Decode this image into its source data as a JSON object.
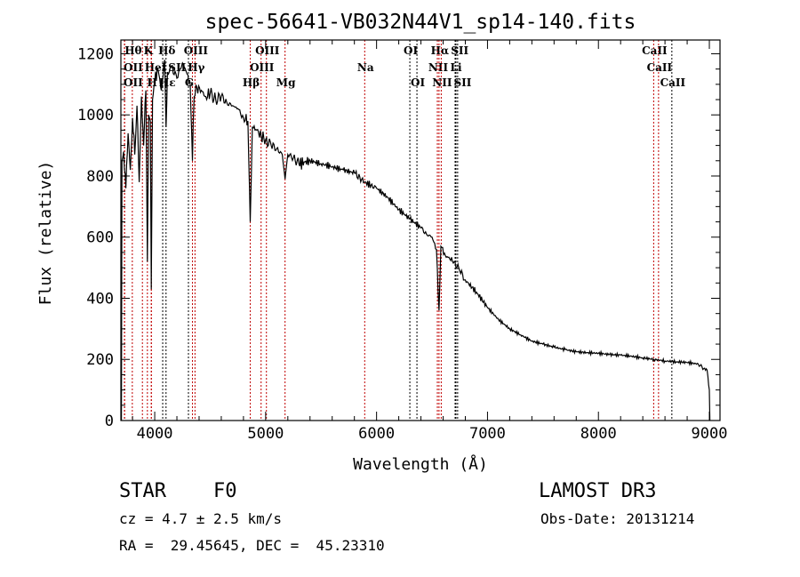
{
  "chart_data": {
    "type": "line",
    "title": "spec-56641-VB032N44V1_sp14-140.fits",
    "xlabel": "Wavelength (Å)",
    "ylabel": "Flux (relative)",
    "xlim": [
      3695,
      9096
    ],
    "ylim": [
      0,
      1245
    ],
    "xticks": [
      4000,
      5000,
      6000,
      7000,
      8000,
      9000
    ],
    "yticks": [
      0,
      200,
      400,
      600,
      800,
      1000,
      1200
    ],
    "grid": false,
    "series": [
      {
        "name": "spectrum",
        "x": [
          3700,
          3705,
          3720,
          3740,
          3760,
          3780,
          3800,
          3820,
          3840,
          3860,
          3880,
          3900,
          3920,
          3934,
          3945,
          3960,
          3969,
          3980,
          4000,
          4030,
          4060,
          4090,
          4102,
          4115,
          4150,
          4200,
          4250,
          4300,
          4320,
          4340,
          4355,
          4380,
          4420,
          4460,
          4500,
          4550,
          4600,
          4650,
          4700,
          4750,
          4800,
          4840,
          4861,
          4880,
          4920,
          4960,
          5000,
          5050,
          5100,
          5150,
          5175,
          5200,
          5250,
          5300,
          5400,
          5500,
          5600,
          5700,
          5800,
          5890,
          5950,
          6000,
          6100,
          6200,
          6300,
          6400,
          6450,
          6500,
          6540,
          6563,
          6580,
          6620,
          6700,
          6750,
          6800,
          6900,
          7000,
          7100,
          7200,
          7300,
          7400,
          7500,
          7600,
          7700,
          7800,
          7900,
          8000,
          8100,
          8200,
          8300,
          8400,
          8500,
          8600,
          8700,
          8800,
          8900,
          8950,
          8980,
          9000,
          9005
        ],
        "y": [
          0,
          850,
          880,
          760,
          940,
          820,
          990,
          870,
          1030,
          780,
          1060,
          900,
          1080,
          520,
          1000,
          980,
          430,
          1050,
          1110,
          1150,
          1080,
          1180,
          960,
          1140,
          1160,
          1120,
          1170,
          1130,
          1100,
          850,
          1060,
          1090,
          1080,
          1060,
          1070,
          1050,
          1060,
          1040,
          1030,
          1020,
          990,
          980,
          650,
          960,
          950,
          930,
          920,
          900,
          890,
          870,
          790,
          870,
          860,
          840,
          850,
          840,
          830,
          820,
          810,
          780,
          770,
          760,
          730,
          690,
          660,
          630,
          610,
          600,
          560,
          360,
          570,
          540,
          520,
          490,
          460,
          420,
          370,
          330,
          300,
          280,
          260,
          250,
          240,
          232,
          225,
          222,
          220,
          216,
          214,
          210,
          205,
          200,
          195,
          192,
          190,
          185,
          170,
          165,
          100,
          0
        ]
      }
    ],
    "line_markers": [
      {
        "label": "Hθ",
        "wl": 3798,
        "row": 0,
        "color": "#c00000"
      },
      {
        "label": "K",
        "wl": 3934,
        "row": 0,
        "color": "#c00000"
      },
      {
        "label": "Hδ",
        "wl": 4102,
        "row": 0,
        "color": "#000000"
      },
      {
        "label": "OIII",
        "wl": 4363,
        "row": 0,
        "color": "#c00000"
      },
      {
        "label": "OIII",
        "wl": 5007,
        "row": 0,
        "color": "#c00000"
      },
      {
        "label": "OI",
        "wl": 6300,
        "row": 0,
        "color": "#000000"
      },
      {
        "label": "Hα",
        "wl": 6563,
        "row": 0,
        "color": "#c00000"
      },
      {
        "label": "SII",
        "wl": 6716,
        "row": 0,
        "color": "#000000"
      },
      {
        "label": "CaII",
        "wl": 8498,
        "row": 0,
        "color": "#c00000"
      },
      {
        "label": "OII",
        "wl": 3727,
        "row": 1,
        "color": "#c00000"
      },
      {
        "label": "HeI",
        "wl": 3889,
        "row": 1,
        "color": "#c00000"
      },
      {
        "label": "SII",
        "wl": 4072,
        "row": 1,
        "color": "#000000"
      },
      {
        "label": "Hγ",
        "wl": 4340,
        "row": 1,
        "color": "#c00000"
      },
      {
        "label": "OIII",
        "wl": 4959,
        "row": 1,
        "color": "#c00000"
      },
      {
        "label": "Na",
        "wl": 5893,
        "row": 1,
        "color": "#c00000"
      },
      {
        "label": "NII",
        "wl": 6548,
        "row": 1,
        "color": "#c00000"
      },
      {
        "label": "Li",
        "wl": 6708,
        "row": 1,
        "color": "#000000"
      },
      {
        "label": "CaII",
        "wl": 8542,
        "row": 1,
        "color": "#c00000"
      },
      {
        "label": "OII",
        "wl": 3729,
        "row": 2,
        "color": "#c00000"
      },
      {
        "label": "Hε",
        "wl": 3970,
        "row": 2,
        "color": "#c00000"
      },
      {
        "label": "H",
        "wl": 3969,
        "row": 2,
        "color": "#c00000"
      },
      {
        "label": "G",
        "wl": 4304,
        "row": 2,
        "color": "#000000"
      },
      {
        "label": "Hβ",
        "wl": 4861,
        "row": 2,
        "color": "#c00000"
      },
      {
        "label": "Mg",
        "wl": 5175,
        "row": 2,
        "color": "#c00000"
      },
      {
        "label": "OI",
        "wl": 6364,
        "row": 2,
        "color": "#000000"
      },
      {
        "label": "NII",
        "wl": 6583,
        "row": 2,
        "color": "#c00000"
      },
      {
        "label": "SII",
        "wl": 6731,
        "row": 2,
        "color": "#000000"
      },
      {
        "label": "CaII",
        "wl": 8662,
        "row": 2,
        "color": "#000000"
      }
    ]
  },
  "info": {
    "object_class": "STAR",
    "subclass": "F0",
    "survey": "LAMOST DR3",
    "cz": "cz = 4.7 ± 2.5 km/s",
    "obs_date": "Obs-Date: 20131214",
    "coords": "RA =  29.45645, DEC =  45.23310"
  }
}
